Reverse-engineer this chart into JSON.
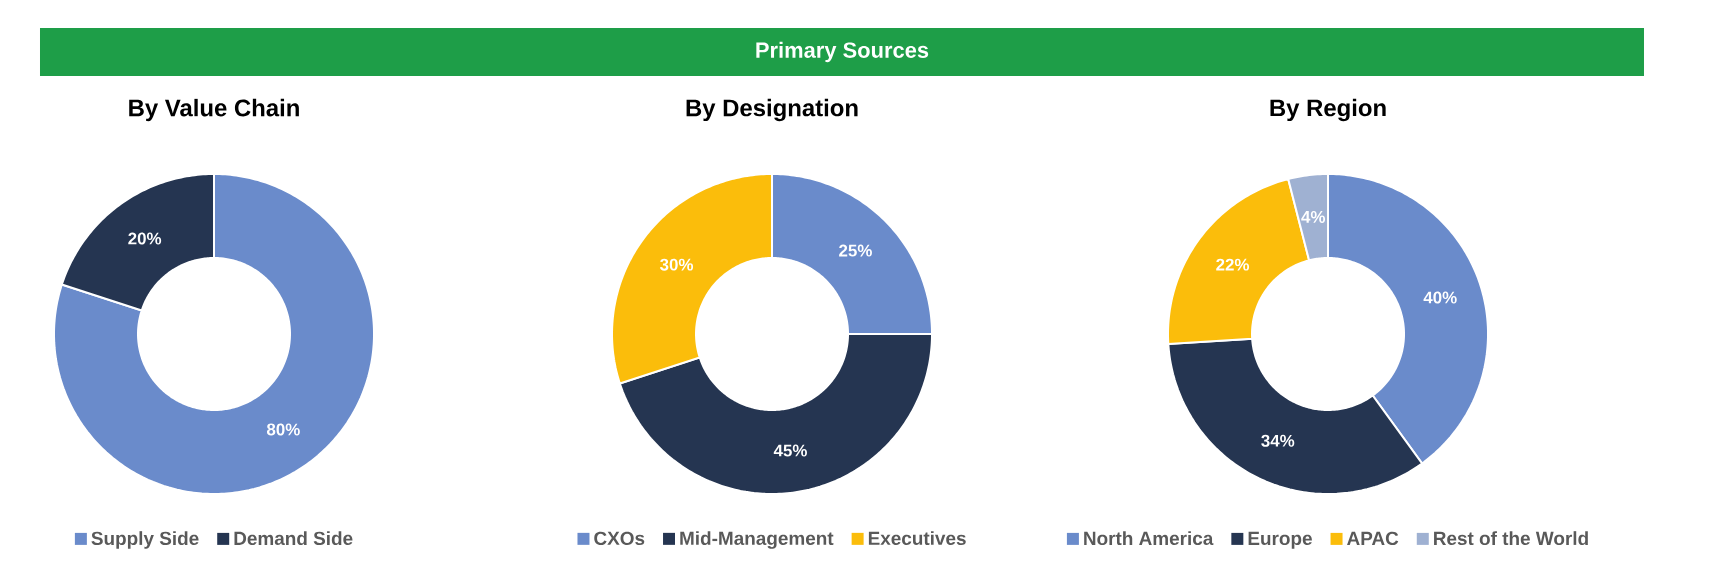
{
  "chart_data": [
    {
      "type": "donut",
      "title": "By Value Chain",
      "annotations": [
        "Primary Sources"
      ],
      "categories": [
        "Supply Side",
        "Demand Side"
      ],
      "values": [
        80,
        20
      ],
      "colors": [
        "#6a8bcb",
        "#253551"
      ],
      "value_labels": [
        "80%",
        "20%"
      ],
      "legend": "bottom"
    },
    {
      "type": "donut",
      "title": "By Designation",
      "categories": [
        "CXOs",
        "Mid-Management",
        "Executives"
      ],
      "values": [
        25,
        45,
        30
      ],
      "colors": [
        "#6a8bcb",
        "#253551",
        "#fbbd0b"
      ],
      "value_labels": [
        "25%",
        "45%",
        "30%"
      ],
      "legend": "bottom"
    },
    {
      "type": "donut",
      "title": "By Region",
      "categories": [
        "North America",
        "Europe",
        "APAC",
        "Rest of the World"
      ],
      "values": [
        40,
        34,
        22,
        4
      ],
      "colors": [
        "#6a8bcb",
        "#253551",
        "#fbbd0b",
        "#9fb1d2"
      ],
      "value_labels": [
        "40%",
        "34%",
        "22%",
        "4%"
      ],
      "legend": "bottom"
    }
  ]
}
